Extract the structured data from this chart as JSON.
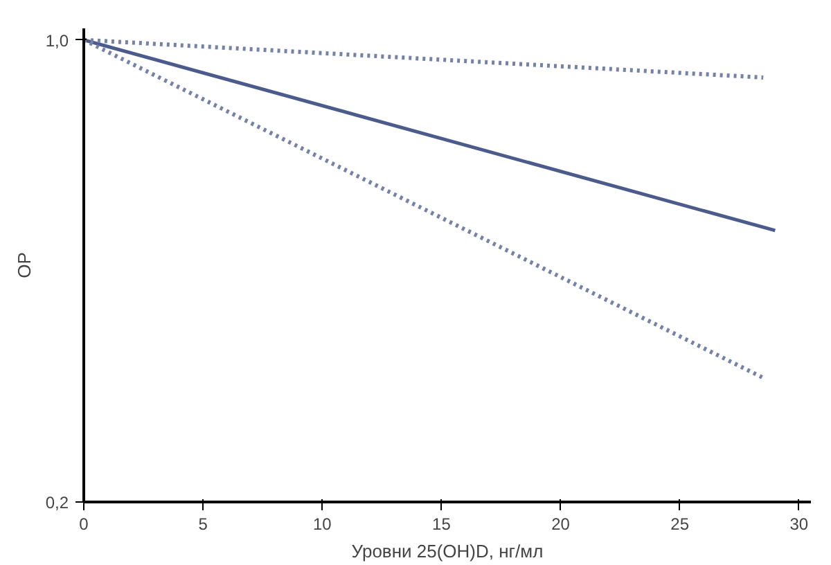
{
  "chart_data": {
    "type": "line",
    "xlabel": "Уровни 25(OH)D, нг/мл",
    "ylabel": "ОР",
    "xlim": [
      0,
      30.5
    ],
    "ylim": [
      0.2,
      1.02
    ],
    "xticks": [
      0,
      5,
      10,
      15,
      20,
      25,
      30
    ],
    "yticks": [
      {
        "value": 0.2,
        "label": "0,2"
      },
      {
        "value": 1.0,
        "label": "1,0"
      }
    ],
    "grid": false,
    "marker": "none",
    "series": [
      {
        "color": "#4b5b8c",
        "line_style": "solid",
        "x": [
          0,
          29
        ],
        "values": [
          1.0,
          0.67
        ]
      },
      {
        "color": "#7482a8",
        "line_style": "dotted",
        "x": [
          0,
          28.5
        ],
        "values": [
          1.0,
          0.935
        ]
      },
      {
        "color": "#7482a8",
        "line_style": "dotted",
        "x": [
          0,
          28.5
        ],
        "values": [
          1.0,
          0.415
        ]
      }
    ]
  }
}
